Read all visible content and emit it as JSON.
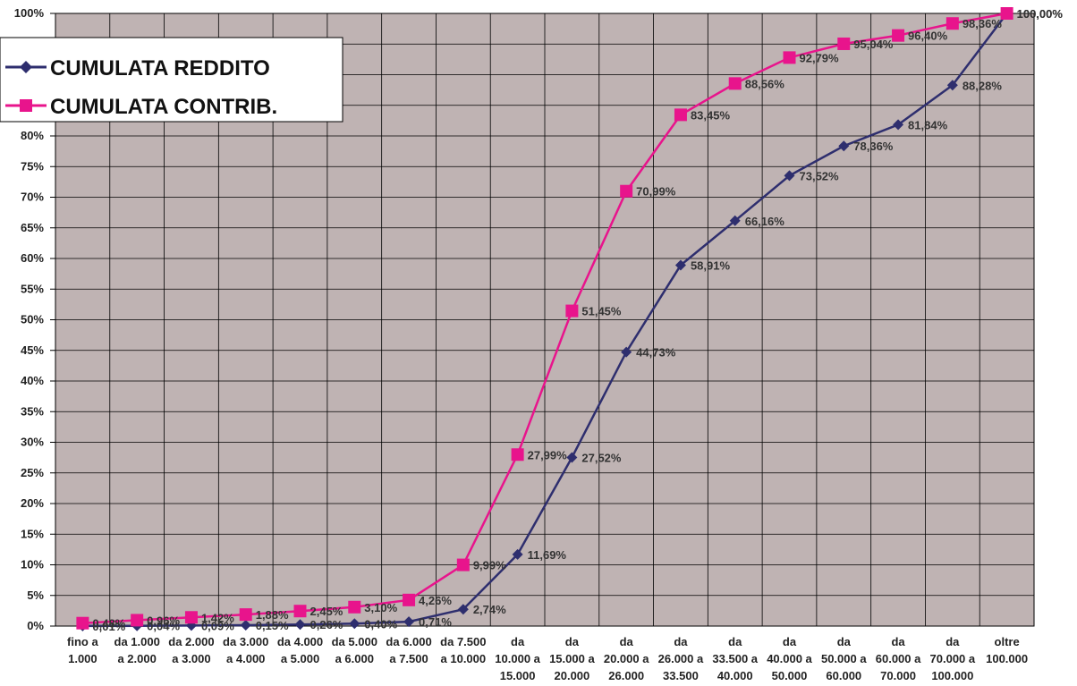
{
  "chart_data": {
    "type": "line",
    "title": "",
    "xlabel": "",
    "ylabel": "",
    "ylim": [
      0,
      100
    ],
    "y_ticks": [
      "0%",
      "5%",
      "10%",
      "15%",
      "20%",
      "25%",
      "30%",
      "35%",
      "40%",
      "45%",
      "50%",
      "55%",
      "60%",
      "65%",
      "70%",
      "75%",
      "80%",
      "85%",
      "90%",
      "95%",
      "100%"
    ],
    "grid": true,
    "legend_position": "top-left",
    "plot_background": "#bfb3b3",
    "categories": [
      [
        "fino a",
        "1.000"
      ],
      [
        "da 1.000",
        "a 2.000"
      ],
      [
        "da 2.000",
        "a 3.000"
      ],
      [
        "da 3.000",
        "a 4.000"
      ],
      [
        "da 4.000",
        "a 5.000"
      ],
      [
        "da 5.000",
        "a 6.000"
      ],
      [
        "da 6.000",
        "a 7.500"
      ],
      [
        "da 7.500",
        "a 10.000"
      ],
      [
        "da",
        "10.000 a",
        "15.000"
      ],
      [
        "da",
        "15.000 a",
        "20.000"
      ],
      [
        "da",
        "20.000 a",
        "26.000"
      ],
      [
        "da",
        "26.000 a",
        "33.500"
      ],
      [
        "da",
        "33.500 a",
        "40.000"
      ],
      [
        "da",
        "40.000 a",
        "50.000"
      ],
      [
        "da",
        "50.000 a",
        "60.000"
      ],
      [
        "da",
        "60.000 a",
        "70.000"
      ],
      [
        "da",
        "70.000 a",
        "100.000"
      ],
      [
        "oltre",
        "100.000"
      ]
    ],
    "series": [
      {
        "name": "CUMULATA REDDITO",
        "color": "#2e2e6e",
        "marker": "diamond",
        "values": [
          0.01,
          0.04,
          0.09,
          0.15,
          0.26,
          0.4,
          0.71,
          2.74,
          11.69,
          27.52,
          44.73,
          58.91,
          66.16,
          73.52,
          78.36,
          81.84,
          88.28,
          100.0
        ],
        "labels": [
          "0,01%",
          "0,04%",
          "0,09%",
          "0,15%",
          "0,26%",
          "0,40%",
          "0,71%",
          "2,74%",
          "11,69%",
          "27,52%",
          "44,73%",
          "58,91%",
          "66,16%",
          "73,52%",
          "78,36%",
          "81,84%",
          "88,28%",
          "100,00%"
        ]
      },
      {
        "name": "CUMULATA CONTRIB.",
        "color": "#e8148c",
        "marker": "square",
        "values": [
          0.48,
          0.96,
          1.42,
          1.88,
          2.45,
          3.1,
          4.26,
          9.99,
          27.99,
          51.45,
          70.99,
          83.45,
          88.56,
          92.79,
          95.04,
          96.4,
          98.36,
          100.0
        ],
        "labels": [
          "0,48%",
          "0,96%",
          "1,42%",
          "1,88%",
          "2,45%",
          "3,10%",
          "4,26%",
          "9,99%",
          "27,99%",
          "51,45%",
          "70,99%",
          "83,45%",
          "88,56%",
          "92,79%",
          "95,04%",
          "96,40%",
          "98,36%",
          "100,00%"
        ]
      }
    ]
  }
}
